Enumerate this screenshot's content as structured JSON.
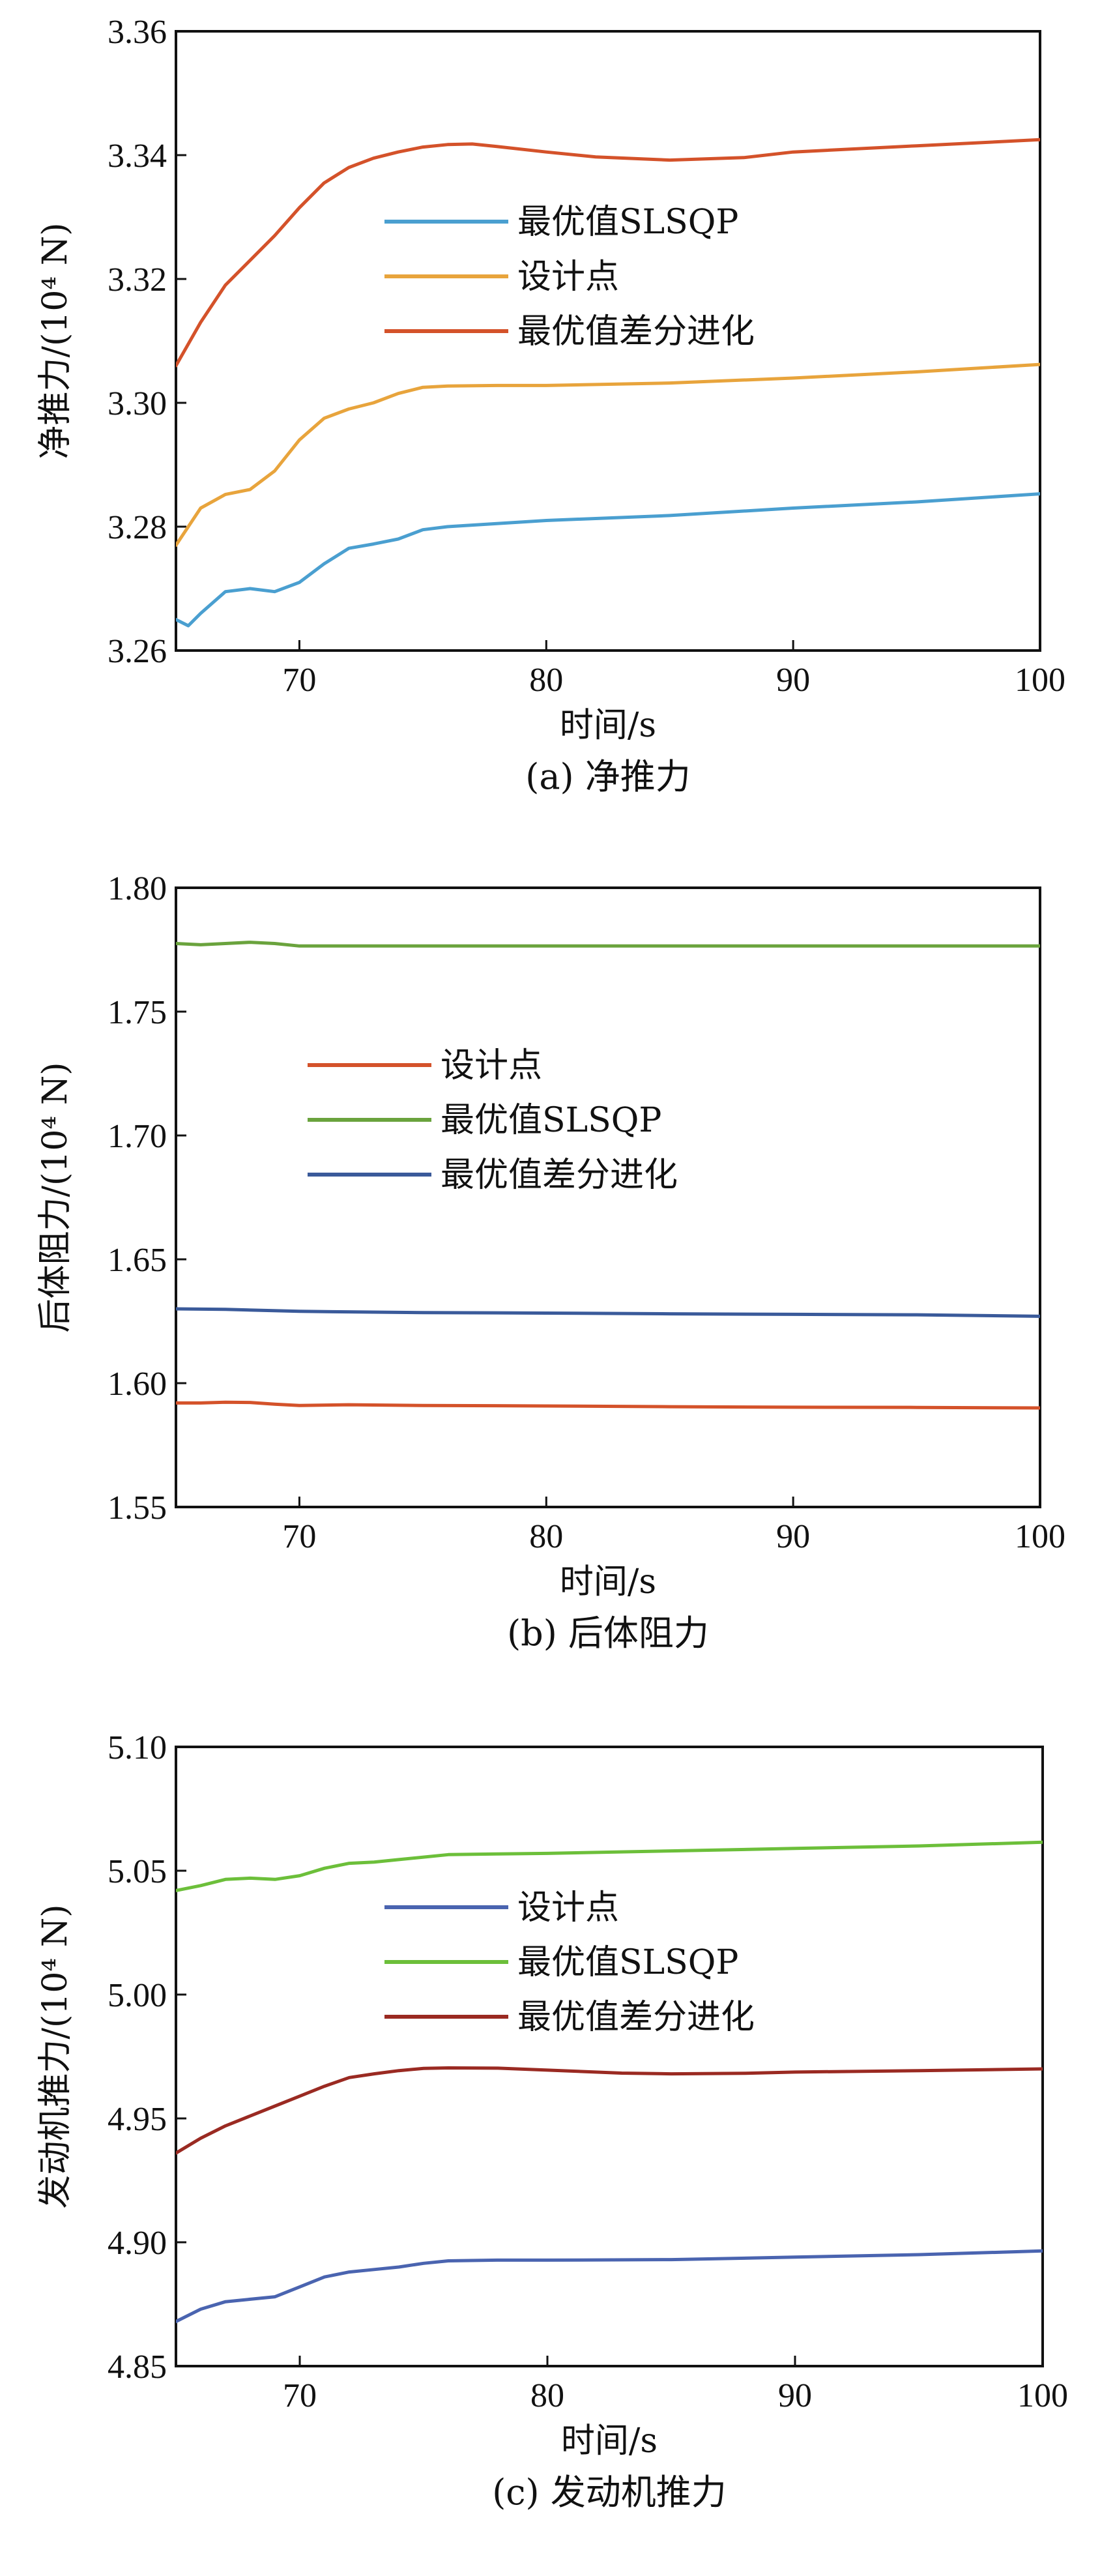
{
  "chart_data": [
    {
      "type": "line",
      "caption": "(a) 净推力",
      "xlabel": "时间/s",
      "ylabel": "净推力/(10⁴ N)",
      "xlim": [
        65,
        100
      ],
      "ylim": [
        3.26,
        3.36
      ],
      "xticks": [
        70,
        80,
        90,
        100
      ],
      "yticks": [
        3.26,
        3.28,
        3.3,
        3.32,
        3.34,
        3.36
      ],
      "ydecimals": 2,
      "legend_position": "center-left",
      "series": [
        {
          "name": "最优值SLSQP",
          "color": "#4a9fd0",
          "x": [
            65,
            65.5,
            66,
            67,
            68,
            69,
            70,
            71,
            72,
            73,
            74,
            75,
            76,
            78,
            80,
            85,
            90,
            95,
            100
          ],
          "values": [
            3.265,
            3.264,
            3.266,
            3.2695,
            3.27,
            3.2695,
            3.271,
            3.274,
            3.2765,
            3.2772,
            3.278,
            3.2795,
            3.28,
            3.2805,
            3.281,
            3.2818,
            3.283,
            3.284,
            3.2853
          ]
        },
        {
          "name": "设计点",
          "color": "#e8a43c",
          "x": [
            65,
            66,
            67,
            68,
            69,
            70,
            71,
            72,
            73,
            74,
            75,
            76,
            78,
            80,
            85,
            90,
            95,
            100
          ],
          "values": [
            3.277,
            3.283,
            3.2852,
            3.286,
            3.289,
            3.294,
            3.2975,
            3.299,
            3.3,
            3.3015,
            3.3025,
            3.3027,
            3.3028,
            3.3028,
            3.3032,
            3.304,
            3.305,
            3.3062
          ]
        },
        {
          "name": "最优值差分进化",
          "color": "#d4522a",
          "x": [
            65,
            66,
            67,
            68,
            69,
            70,
            71,
            72,
            73,
            74,
            75,
            76,
            77,
            78,
            80,
            82,
            85,
            88,
            90,
            95,
            100
          ],
          "values": [
            3.306,
            3.313,
            3.319,
            3.323,
            3.327,
            3.3315,
            3.3355,
            3.338,
            3.3395,
            3.3405,
            3.3413,
            3.3417,
            3.3418,
            3.3414,
            3.3405,
            3.3397,
            3.3392,
            3.3396,
            3.3405,
            3.3415,
            3.3425
          ]
        }
      ]
    },
    {
      "type": "line",
      "caption": "(b) 后体阻力",
      "xlabel": "时间/s",
      "ylabel": "后体阻力/(10⁴ N)",
      "xlim": [
        65,
        100
      ],
      "ylim": [
        1.55,
        1.8
      ],
      "xticks": [
        70,
        80,
        90,
        100
      ],
      "yticks": [
        1.55,
        1.6,
        1.65,
        1.7,
        1.75,
        1.8
      ],
      "ydecimals": 2,
      "legend_position": "center-left",
      "series": [
        {
          "name": "设计点",
          "color": "#d4522a",
          "x": [
            65,
            66,
            67,
            68,
            69,
            70,
            72,
            75,
            80,
            85,
            90,
            95,
            100
          ],
          "values": [
            1.592,
            1.592,
            1.5923,
            1.5922,
            1.5915,
            1.591,
            1.5913,
            1.591,
            1.5908,
            1.5905,
            1.5903,
            1.5902,
            1.59
          ]
        },
        {
          "name": "最优值SLSQP",
          "color": "#6aa33d",
          "x": [
            65,
            66,
            67,
            68,
            69,
            70,
            72,
            75,
            80,
            85,
            90,
            95,
            100
          ],
          "values": [
            1.7775,
            1.777,
            1.7775,
            1.778,
            1.7775,
            1.7765,
            1.7765,
            1.7765,
            1.7765,
            1.7765,
            1.7765,
            1.7765,
            1.7765
          ]
        },
        {
          "name": "最优值差分进化",
          "color": "#3a5a9a",
          "x": [
            65,
            67,
            70,
            72,
            75,
            80,
            85,
            90,
            95,
            100
          ],
          "values": [
            1.63,
            1.6298,
            1.629,
            1.6288,
            1.6285,
            1.6283,
            1.628,
            1.6278,
            1.6276,
            1.627
          ]
        }
      ]
    },
    {
      "type": "line",
      "caption": "(c) 发动机推力",
      "xlabel": "时间/s",
      "ylabel": "发动机推力/(10⁴ N)",
      "xlim": [
        65,
        100
      ],
      "ylim": [
        4.85,
        5.1
      ],
      "xticks": [
        70,
        80,
        90,
        100
      ],
      "yticks": [
        4.85,
        4.9,
        4.95,
        5.0,
        5.05,
        5.1
      ],
      "ydecimals": 2,
      "legend_position": "center-left",
      "series": [
        {
          "name": "设计点",
          "color": "#4a64b0",
          "x": [
            65,
            66,
            67,
            68,
            69,
            70,
            71,
            72,
            73,
            74,
            75,
            76,
            78,
            80,
            85,
            90,
            95,
            100
          ],
          "values": [
            4.868,
            4.873,
            4.876,
            4.877,
            4.878,
            4.882,
            4.886,
            4.888,
            4.889,
            4.89,
            4.8915,
            4.8925,
            4.8928,
            4.8928,
            4.893,
            4.894,
            4.895,
            4.8965
          ]
        },
        {
          "name": "最优值SLSQP",
          "color": "#6cbf3a",
          "x": [
            65,
            66,
            67,
            68,
            69,
            70,
            71,
            72,
            73,
            74,
            75,
            76,
            78,
            80,
            85,
            90,
            95,
            100
          ],
          "values": [
            5.042,
            5.044,
            5.0465,
            5.047,
            5.0465,
            5.048,
            5.051,
            5.053,
            5.0535,
            5.0545,
            5.0555,
            5.0565,
            5.0568,
            5.057,
            5.058,
            5.059,
            5.06,
            5.0615
          ]
        },
        {
          "name": "最优值差分进化",
          "color": "#9a2a22",
          "x": [
            65,
            66,
            67,
            68,
            69,
            70,
            71,
            72,
            73,
            74,
            75,
            76,
            78,
            80,
            83,
            85,
            88,
            90,
            95,
            100
          ],
          "values": [
            4.936,
            4.942,
            4.947,
            4.951,
            4.955,
            4.959,
            4.963,
            4.9665,
            4.968,
            4.9693,
            4.9702,
            4.9704,
            4.9703,
            4.9695,
            4.9683,
            4.968,
            4.9682,
            4.9687,
            4.9693,
            4.97
          ]
        }
      ]
    }
  ]
}
